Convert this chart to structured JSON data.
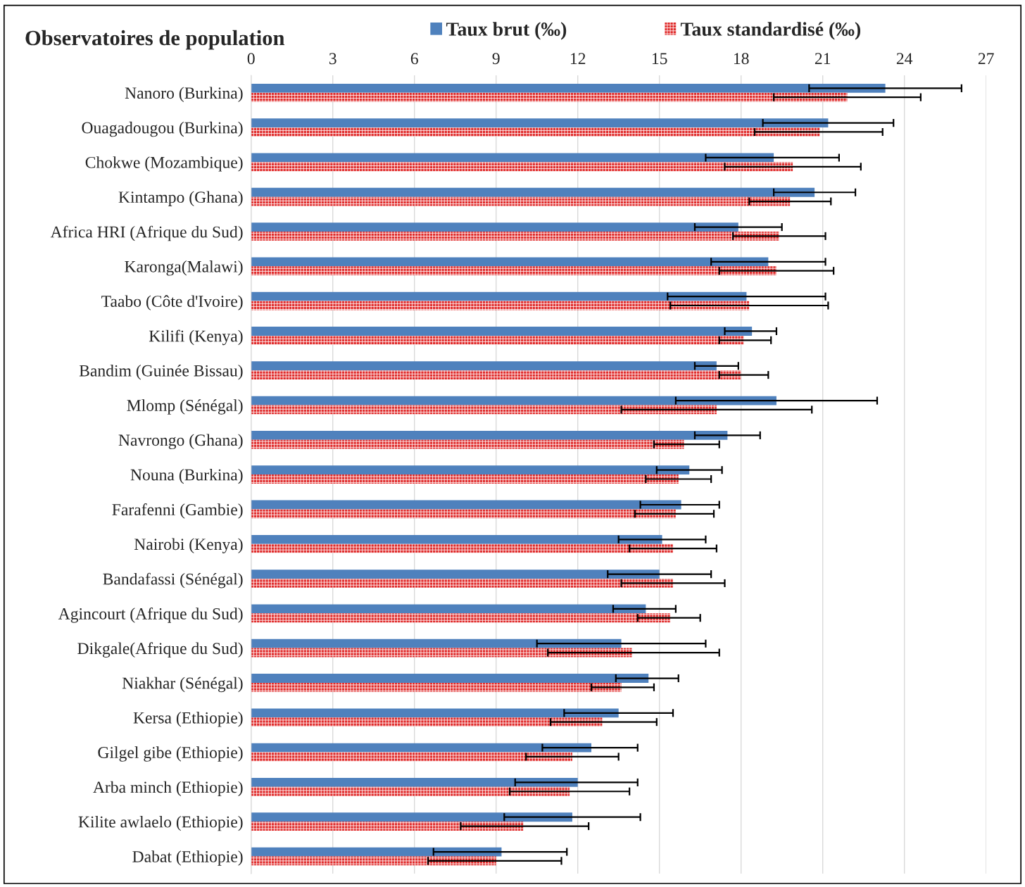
{
  "chart_data": {
    "type": "bar",
    "orientation": "horizontal",
    "title": "Observatoires de population",
    "categories": [
      "Nanoro (Burkina)",
      "Ouagadougou (Burkina)",
      "Chokwe (Mozambique)",
      "Kintampo (Ghana)",
      "Africa HRI (Afrique du Sud)",
      "Karonga(Malawi)",
      "Taabo (Côte d'Ivoire)",
      "Kilifi (Kenya)",
      "Bandim (Guinée Bissau)",
      "Mlomp (Sénégal)",
      "Navrongo (Ghana)",
      "Nouna (Burkina)",
      "Farafenni (Gambie)",
      "Nairobi (Kenya)",
      "Bandafassi (Sénégal)",
      "Agincourt (Afrique du Sud)",
      "Dikgale(Afrique du Sud)",
      "Niakhar (Sénégal)",
      "Kersa (Ethiopie)",
      "Gilgel gibe (Ethiopie)",
      "Arba minch (Ethiopie)",
      "Kilite awlaelo (Ethiopie)",
      "Dabat (Ethiopie)"
    ],
    "series": [
      {
        "name": "Taux brut (‰)",
        "color": "#4f81bd",
        "values": [
          23.3,
          21.2,
          19.2,
          20.7,
          17.9,
          19.0,
          18.2,
          18.4,
          17.1,
          19.3,
          17.5,
          16.1,
          15.8,
          15.1,
          15.0,
          14.5,
          13.6,
          14.6,
          13.5,
          12.5,
          12.0,
          11.8,
          9.2
        ],
        "errors": [
          [
            20.5,
            26.1
          ],
          [
            18.8,
            23.6
          ],
          [
            16.7,
            21.6
          ],
          [
            19.2,
            22.2
          ],
          [
            16.3,
            19.5
          ],
          [
            16.9,
            21.1
          ],
          [
            15.3,
            21.1
          ],
          [
            17.4,
            19.3
          ],
          [
            16.3,
            17.9
          ],
          [
            15.6,
            23.0
          ],
          [
            16.3,
            18.7
          ],
          [
            14.9,
            17.3
          ],
          [
            14.3,
            17.2
          ],
          [
            13.5,
            16.7
          ],
          [
            13.1,
            16.9
          ],
          [
            13.3,
            15.6
          ],
          [
            10.5,
            16.7
          ],
          [
            13.4,
            15.7
          ],
          [
            11.5,
            15.5
          ],
          [
            10.7,
            14.2
          ],
          [
            9.7,
            14.2
          ],
          [
            9.3,
            14.3
          ],
          [
            6.7,
            11.6
          ]
        ]
      },
      {
        "name": "Taux standardisé (‰)",
        "color": "#e02b2b",
        "values": [
          21.9,
          20.9,
          19.9,
          19.8,
          19.4,
          19.3,
          18.3,
          18.1,
          18.0,
          17.1,
          15.9,
          15.7,
          15.6,
          15.5,
          15.5,
          15.4,
          14.0,
          13.6,
          12.9,
          11.8,
          11.7,
          10.0,
          9.0
        ],
        "errors": [
          [
            19.2,
            24.6
          ],
          [
            18.5,
            23.2
          ],
          [
            17.4,
            22.4
          ],
          [
            18.3,
            21.3
          ],
          [
            17.7,
            21.1
          ],
          [
            17.2,
            21.4
          ],
          [
            15.4,
            21.2
          ],
          [
            17.2,
            19.1
          ],
          [
            17.2,
            19.0
          ],
          [
            13.6,
            20.6
          ],
          [
            14.8,
            17.2
          ],
          [
            14.5,
            16.9
          ],
          [
            14.1,
            17.0
          ],
          [
            13.9,
            17.1
          ],
          [
            13.6,
            17.4
          ],
          [
            14.2,
            16.5
          ],
          [
            10.9,
            17.2
          ],
          [
            12.5,
            14.8
          ],
          [
            11.0,
            14.9
          ],
          [
            10.1,
            13.5
          ],
          [
            9.5,
            13.9
          ],
          [
            7.7,
            12.4
          ],
          [
            6.5,
            11.4
          ]
        ]
      }
    ],
    "xlim": [
      0,
      27
    ],
    "xticks": [
      0,
      3,
      6,
      9,
      12,
      15,
      18,
      21,
      24,
      27
    ],
    "grid": "x",
    "legend": "top"
  }
}
